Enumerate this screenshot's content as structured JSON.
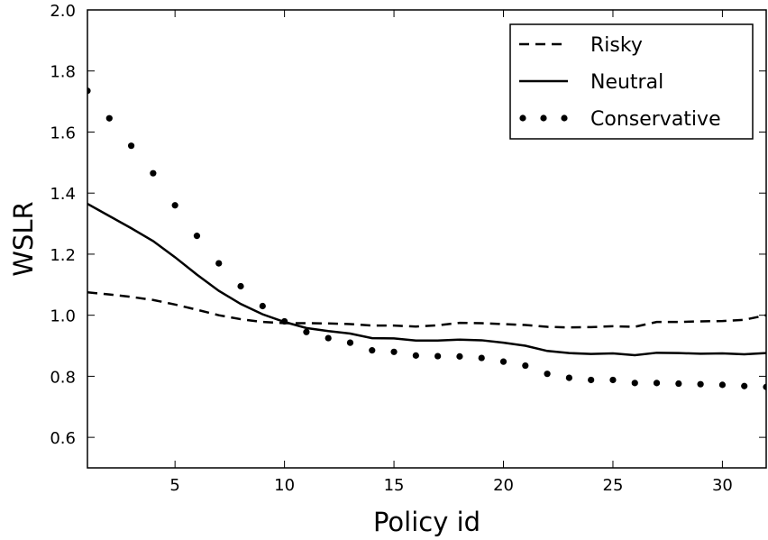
{
  "chart_data": {
    "type": "line",
    "title": "",
    "xlabel": "Policy id",
    "ylabel": "WSLR",
    "xlim": [
      1,
      32
    ],
    "ylim": [
      0.5,
      2.0
    ],
    "xticks": [
      5,
      10,
      15,
      20,
      25,
      30
    ],
    "yticks": [
      0.6,
      0.8,
      1.0,
      1.2,
      1.4,
      1.6,
      1.8,
      2.0
    ],
    "ytick_labels": [
      "0.6",
      "0.8",
      "1.0",
      "1.2",
      "1.4",
      "1.6",
      "1.8",
      "2.0"
    ],
    "grid": false,
    "legend_position": "top-right",
    "x": [
      1,
      2,
      3,
      4,
      5,
      6,
      7,
      8,
      9,
      10,
      11,
      12,
      13,
      14,
      15,
      16,
      17,
      18,
      19,
      20,
      21,
      22,
      23,
      24,
      25,
      26,
      27,
      28,
      29,
      30,
      31,
      32
    ],
    "series": [
      {
        "name": "Risky",
        "style": "dashed",
        "color": "#000000",
        "values": [
          1.075,
          1.068,
          1.06,
          1.05,
          1.035,
          1.018,
          1.0,
          0.987,
          0.978,
          0.974,
          0.974,
          0.973,
          0.971,
          0.966,
          0.966,
          0.963,
          0.967,
          0.975,
          0.974,
          0.971,
          0.968,
          0.962,
          0.96,
          0.961,
          0.964,
          0.962,
          0.978,
          0.978,
          0.98,
          0.981,
          0.985,
          1.0
        ]
      },
      {
        "name": "Neutral",
        "style": "solid",
        "color": "#000000",
        "values": [
          1.365,
          1.325,
          1.285,
          1.243,
          1.19,
          1.133,
          1.08,
          1.037,
          1.003,
          0.978,
          0.958,
          0.948,
          0.94,
          0.925,
          0.924,
          0.917,
          0.917,
          0.92,
          0.918,
          0.91,
          0.9,
          0.883,
          0.876,
          0.873,
          0.875,
          0.869,
          0.877,
          0.876,
          0.874,
          0.875,
          0.872,
          0.876
        ]
      },
      {
        "name": "Conservative",
        "style": "dotted",
        "color": "#000000",
        "values": [
          1.735,
          1.645,
          1.555,
          1.465,
          1.36,
          1.26,
          1.17,
          1.095,
          1.03,
          0.98,
          0.945,
          0.925,
          0.91,
          0.885,
          0.88,
          0.868,
          0.866,
          0.865,
          0.86,
          0.848,
          0.835,
          0.808,
          0.795,
          0.788,
          0.788,
          0.778,
          0.778,
          0.776,
          0.774,
          0.772,
          0.768,
          0.765
        ]
      }
    ]
  }
}
